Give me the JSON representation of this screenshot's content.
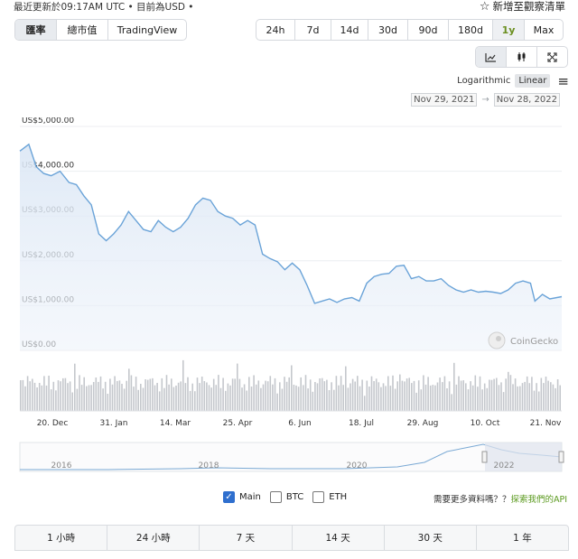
{
  "header": {
    "updated_text": "最近更新於09:17AM UTC • 目前為USD •",
    "watchlist_label": "新增至觀察清單",
    "watchlist_icon": "star-outline-icon"
  },
  "view_tabs": [
    "匯率",
    "總市值",
    "TradingView"
  ],
  "range_tabs": [
    "24h",
    "7d",
    "14d",
    "30d",
    "90d",
    "180d",
    "1y",
    "Max"
  ],
  "selected_range": "1y",
  "chart_type_icons": [
    "line-chart-icon",
    "candlestick-icon",
    "fullscreen-icon"
  ],
  "scale": {
    "log_label": "Logarithmic",
    "linear_label": "Linear",
    "menu_icon": "hamburger-menu-icon"
  },
  "date_range": {
    "from": "Nov 29, 2021",
    "to": "Nov 28, 2022"
  },
  "watermark": "CoinGecko",
  "chart_data": {
    "type": "area",
    "title": "",
    "currency": "USD",
    "y_ticks": [
      "US$5,000.00",
      "US$4,000.00",
      "US$3,000.00",
      "US$2,000.00",
      "US$1,000.00",
      "US$0.00"
    ],
    "ylim": [
      0,
      5000
    ],
    "x_ticks": [
      "20. Dec",
      "31. Jan",
      "14. Mar",
      "25. Apr",
      "6. Jun",
      "18. Jul",
      "29. Aug",
      "10. Oct",
      "21. Nov"
    ],
    "x": [
      "2021-11-29",
      "2021-12-05",
      "2021-12-10",
      "2021-12-15",
      "2021-12-20",
      "2021-12-26",
      "2022-01-01",
      "2022-01-06",
      "2022-01-11",
      "2022-01-16",
      "2022-01-21",
      "2022-01-26",
      "2022-01-31",
      "2022-02-05",
      "2022-02-10",
      "2022-02-15",
      "2022-02-20",
      "2022-02-25",
      "2022-03-02",
      "2022-03-07",
      "2022-03-12",
      "2022-03-17",
      "2022-03-22",
      "2022-03-27",
      "2022-04-01",
      "2022-04-06",
      "2022-04-11",
      "2022-04-16",
      "2022-04-21",
      "2022-04-26",
      "2022-05-01",
      "2022-05-06",
      "2022-05-11",
      "2022-05-16",
      "2022-05-21",
      "2022-05-26",
      "2022-05-31",
      "2022-06-05",
      "2022-06-10",
      "2022-06-15",
      "2022-06-20",
      "2022-06-25",
      "2022-06-30",
      "2022-07-05",
      "2022-07-10",
      "2022-07-15",
      "2022-07-20",
      "2022-07-25",
      "2022-07-30",
      "2022-08-04",
      "2022-08-09",
      "2022-08-14",
      "2022-08-19",
      "2022-08-24",
      "2022-08-29",
      "2022-09-03",
      "2022-09-08",
      "2022-09-13",
      "2022-09-18",
      "2022-09-23",
      "2022-09-28",
      "2022-10-03",
      "2022-10-08",
      "2022-10-13",
      "2022-10-18",
      "2022-10-23",
      "2022-10-28",
      "2022-11-02",
      "2022-11-07",
      "2022-11-10",
      "2022-11-15",
      "2022-11-20",
      "2022-11-28"
    ],
    "price": [
      4450,
      4600,
      4100,
      3950,
      3900,
      4000,
      3750,
      3700,
      3450,
      3250,
      2600,
      2450,
      2600,
      2800,
      3100,
      2900,
      2700,
      2650,
      2900,
      2750,
      2650,
      2750,
      2950,
      3250,
      3400,
      3350,
      3100,
      3000,
      2950,
      2800,
      2900,
      2800,
      2150,
      2050,
      1980,
      1800,
      1950,
      1800,
      1450,
      1050,
      1100,
      1150,
      1070,
      1150,
      1180,
      1100,
      1500,
      1650,
      1700,
      1720,
      1880,
      1900,
      1600,
      1650,
      1550,
      1550,
      1600,
      1450,
      1350,
      1300,
      1350,
      1300,
      1320,
      1300,
      1270,
      1350,
      1500,
      1550,
      1500,
      1100,
      1250,
      1150,
      1200
    ],
    "volume_note": "",
    "navigator": {
      "years": [
        "2016",
        "2018",
        "2020",
        "2022"
      ]
    },
    "legend": [
      {
        "name": "Main",
        "checked": true
      },
      {
        "name": "BTC",
        "checked": false
      },
      {
        "name": "ETH",
        "checked": false
      }
    ]
  },
  "api_prompt": {
    "text": "需要更多資料嗎？？",
    "link": "探索我們的API"
  },
  "performance_headers": [
    "1 小時",
    "24 小時",
    "7 天",
    "14 天",
    "30 天",
    "1 年"
  ]
}
